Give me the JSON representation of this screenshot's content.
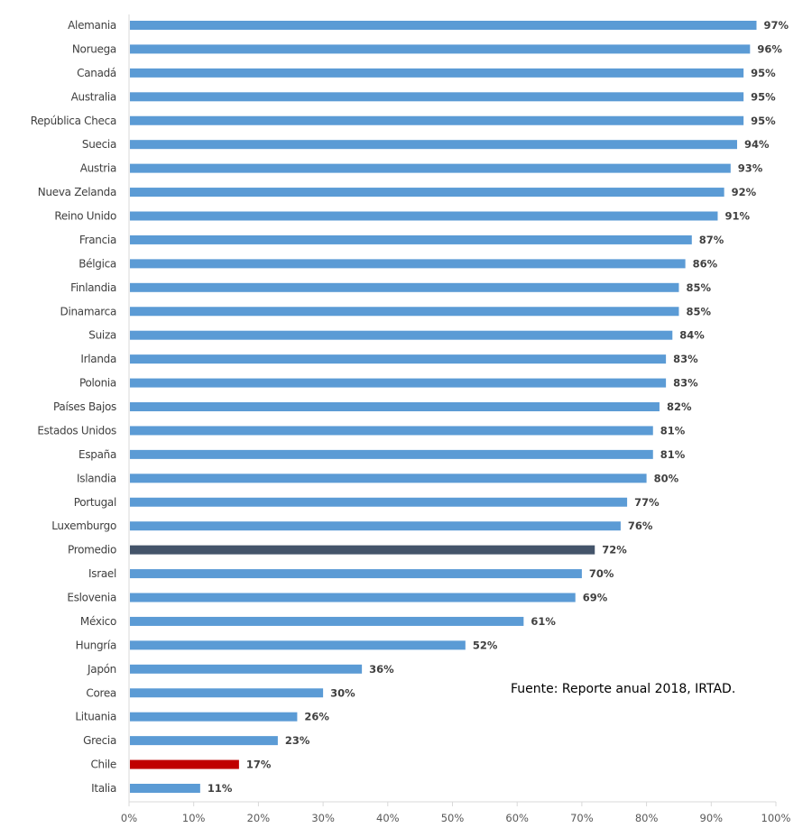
{
  "chart_data": {
    "type": "bar",
    "orientation": "horizontal",
    "categories": [
      "Alemania",
      "Noruega",
      "Canadá",
      "Australia",
      "República Checa",
      "Suecia",
      "Austria",
      "Nueva Zelanda",
      "Reino Unido",
      "Francia",
      "Bélgica",
      "Finlandia",
      "Dinamarca",
      "Suiza",
      "Irlanda",
      "Polonia",
      "Países Bajos",
      "Estados Unidos",
      "España",
      "Islandia",
      "Portugal",
      "Luxemburgo",
      "Promedio",
      "Israel",
      "Eslovenia",
      "México",
      "Hungría",
      "Japón",
      "Corea",
      "Lituania",
      "Grecia",
      "Chile",
      "Italia"
    ],
    "values": [
      97,
      96,
      95,
      95,
      95,
      94,
      93,
      92,
      91,
      87,
      86,
      85,
      85,
      84,
      83,
      83,
      82,
      81,
      81,
      80,
      77,
      76,
      72,
      70,
      69,
      61,
      52,
      36,
      30,
      26,
      23,
      17,
      11
    ],
    "value_labels": [
      "97%",
      "96%",
      "95%",
      "95%",
      "95%",
      "94%",
      "93%",
      "92%",
      "91%",
      "87%",
      "86%",
      "85%",
      "85%",
      "84%",
      "83%",
      "83%",
      "82%",
      "81%",
      "81%",
      "80%",
      "77%",
      "76%",
      "72%",
      "70%",
      "69%",
      "61%",
      "52%",
      "36%",
      "30%",
      "26%",
      "23%",
      "17%",
      "11%"
    ],
    "xlim": [
      0,
      100
    ],
    "x_ticks": [
      "0%",
      "10%",
      "20%",
      "30%",
      "40%",
      "50%",
      "60%",
      "70%",
      "80%",
      "90%",
      "100%"
    ],
    "grid": false,
    "colors": {
      "default": "#5b9bd5",
      "Promedio": "#44546a",
      "Chile": "#c00000"
    },
    "annotation": "Fuente: Reporte anual 2018, IRTAD."
  }
}
